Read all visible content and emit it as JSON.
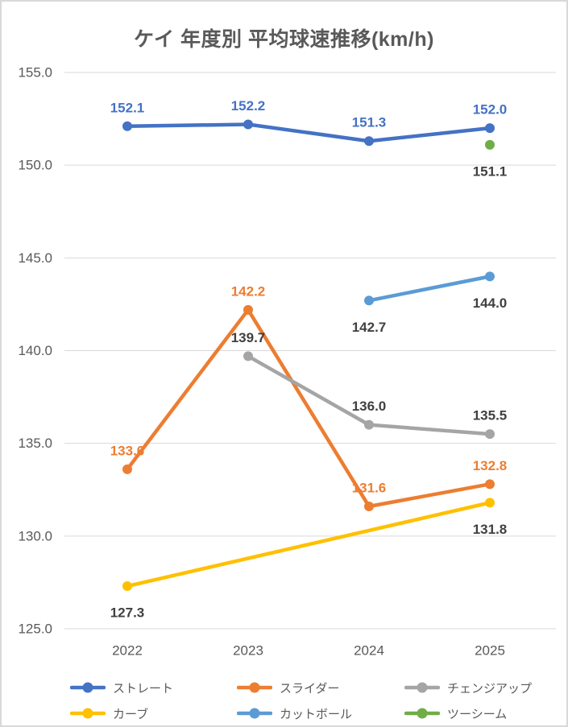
{
  "title": "ケイ 年度別 平均球速推移(km/h)",
  "chart_data": {
    "type": "line",
    "title": "ケイ 年度別 平均球速推移(km/h)",
    "categories": [
      "2022",
      "2023",
      "2024",
      "2025"
    ],
    "series": [
      {
        "id": "straight",
        "name": "ストレート",
        "color": "#4472C4",
        "values": [
          152.1,
          152.2,
          151.3,
          152.0
        ],
        "label_color": "#4472C4",
        "label_position": "above"
      },
      {
        "id": "slider",
        "name": "スライダー",
        "color": "#ED7D31",
        "values": [
          133.6,
          142.2,
          131.6,
          132.8
        ],
        "label_color": "#ED7D31",
        "label_position": "above"
      },
      {
        "id": "changeup",
        "name": "チェンジアップ",
        "color": "#A5A5A5",
        "values": [
          null,
          139.7,
          136.0,
          135.5
        ],
        "label_color": "#404040",
        "label_position": "above"
      },
      {
        "id": "curve",
        "name": "カーブ",
        "color": "#FFC000",
        "values": [
          127.3,
          null,
          null,
          131.8
        ],
        "label_color": "#404040",
        "label_position": "below"
      },
      {
        "id": "cutter",
        "name": "カットボール",
        "color": "#5B9BD5",
        "values": [
          null,
          null,
          142.7,
          144.0
        ],
        "label_color": "#404040",
        "label_position": "below"
      },
      {
        "id": "two-seam",
        "name": "ツーシーム",
        "color": "#70AD47",
        "values": [
          null,
          null,
          null,
          151.1
        ],
        "label_color": "#404040",
        "label_position": "below"
      }
    ],
    "ylim": [
      125.0,
      155.0
    ],
    "ytick_step": 5.0,
    "ytick_labels": [
      "155.0",
      "150.0",
      "145.0",
      "140.0",
      "135.0",
      "130.0",
      "125.0"
    ],
    "grid": true,
    "legend_position": "bottom"
  },
  "colors": {
    "background": "#FFFFFF",
    "border": "#D9D9D9",
    "gridline": "#D9D9D9",
    "axis_text": "#595959",
    "title_text": "#595959",
    "legend_text": "#595959",
    "default_label": "#404040"
  }
}
